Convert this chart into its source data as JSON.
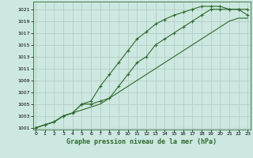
{
  "title": "Graphe pression niveau de la mer (hPa)",
  "xlabel_fontsize": 6,
  "bg_color": "#cce8e0",
  "grid_color": "#b0c8c0",
  "line_color": "#2d6a2d",
  "marker": "+",
  "x": [
    0,
    1,
    2,
    3,
    4,
    5,
    6,
    7,
    8,
    9,
    10,
    11,
    12,
    13,
    14,
    15,
    16,
    17,
    18,
    19,
    20,
    21,
    22,
    23
  ],
  "line1": [
    1001,
    1001.5,
    1002,
    1003,
    1003.5,
    1005,
    1005.5,
    1008,
    1010,
    1012,
    1014,
    1016,
    1017.2,
    1018.5,
    1019.3,
    1020,
    1020.5,
    1021,
    1021.5,
    1021.5,
    1021.5,
    1021,
    1021,
    1021
  ],
  "line2": [
    1001,
    1001.5,
    1002,
    1003,
    1003.5,
    1005,
    1005,
    1005.5,
    1006,
    1008,
    1010,
    1012,
    1013,
    1015,
    1016,
    1017,
    1018,
    1019,
    1020,
    1021,
    1021,
    1021,
    1021,
    1020
  ],
  "line3": [
    1001,
    1001.5,
    1002,
    1003,
    1003.5,
    1004,
    1004.5,
    1005,
    1006,
    1007,
    1008,
    1009,
    1010,
    1011,
    1012,
    1013,
    1014,
    1015,
    1016,
    1017,
    1018,
    1019,
    1019.5,
    1019.5
  ],
  "ylim_min": 1001,
  "ylim_max": 1022,
  "xlim_min": 0,
  "xlim_max": 23,
  "yticks": [
    1001,
    1003,
    1005,
    1007,
    1009,
    1011,
    1013,
    1015,
    1017,
    1019,
    1021
  ],
  "xticks": [
    0,
    1,
    2,
    3,
    4,
    5,
    6,
    7,
    8,
    9,
    10,
    11,
    12,
    13,
    14,
    15,
    16,
    17,
    18,
    19,
    20,
    21,
    22,
    23
  ]
}
